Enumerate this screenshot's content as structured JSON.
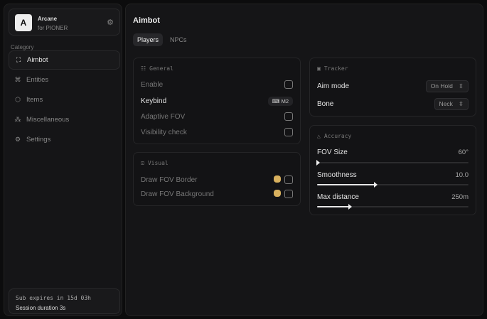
{
  "brand": {
    "logo": "A",
    "name": "Arcane",
    "sub": "for PIONER"
  },
  "sidebar": {
    "category_label": "Category",
    "items": [
      {
        "label": "Aimbot",
        "icon": "crosshair-icon"
      },
      {
        "label": "Entities",
        "icon": "entities-icon"
      },
      {
        "label": "Items",
        "icon": "cube-icon"
      },
      {
        "label": "Miscellaneous",
        "icon": "misc-icon"
      },
      {
        "label": "Settings",
        "icon": "gear-icon"
      }
    ],
    "footer": {
      "sub": "Sub expires in 15d 03h",
      "session": "Session duration 3s"
    }
  },
  "main": {
    "title": "Aimbot",
    "tabs": [
      "Players",
      "NPCs"
    ],
    "general": {
      "title": "General",
      "enable": "Enable",
      "keybind": "Keybind",
      "keybind_value": "M2",
      "adaptive": "Adaptive FOV",
      "visibility": "Visibility check"
    },
    "visual": {
      "title": "Visual",
      "border": "Draw FOV Border",
      "background": "Draw FOV Background",
      "color": "#d9b15e"
    },
    "tracker": {
      "title": "Tracker",
      "aim_mode": "Aim mode",
      "aim_mode_value": "On Hold",
      "bone": "Bone",
      "bone_value": "Neck"
    },
    "accuracy": {
      "title": "Accuracy",
      "fov": {
        "label": "FOV Size",
        "value": "60°",
        "fraction": 0.0
      },
      "smooth": {
        "label": "Smoothness",
        "value": "10.0",
        "fraction": 0.38
      },
      "dist": {
        "label": "Max distance",
        "value": "250m",
        "fraction": 0.21
      }
    }
  }
}
